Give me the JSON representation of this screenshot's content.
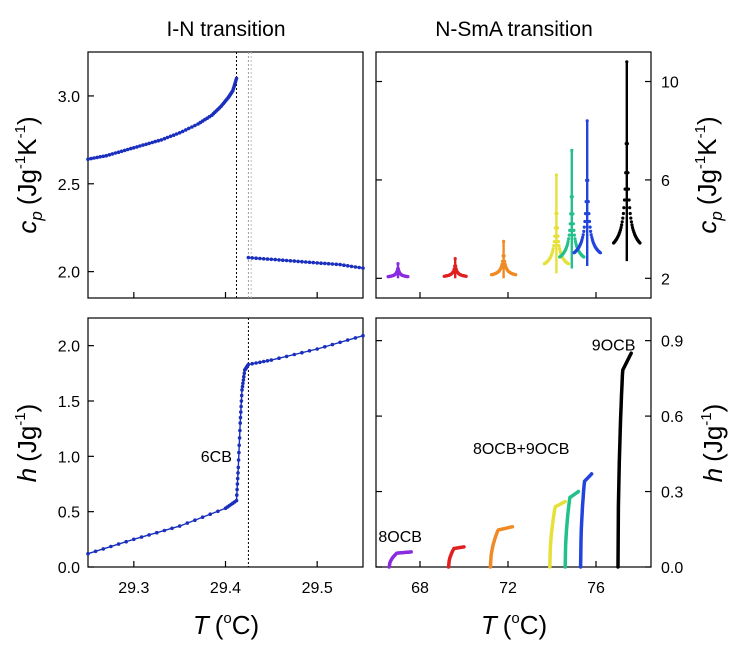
{
  "chart_data": [
    {
      "id": "in-cp",
      "type": "line",
      "title": "I-N transition",
      "ylabel_main": "c",
      "ylabel_sub": "p",
      "ylabel_units": "(Jg",
      "ylabel_sup1": "-1",
      "ylabel_mid": "K",
      "ylabel_sup2": "-1",
      "ylabel_close": ")",
      "xlim": [
        29.25,
        29.55
      ],
      "ylim": [
        1.85,
        3.25
      ],
      "yticks": [
        "2.0",
        "2.5",
        "3.0"
      ],
      "ytick_values": [
        2.0,
        2.5,
        3.0
      ],
      "xtick_values": [
        29.3,
        29.4,
        29.5
      ],
      "grid": false,
      "vlines": [
        {
          "x": 29.412,
          "color": "#000000"
        },
        {
          "x": 29.425,
          "color": "#999999"
        },
        {
          "x": 29.428,
          "color": "#bbbbbb"
        }
      ],
      "series": [
        {
          "color": "#1a2fbd",
          "points": [
            [
              29.25,
              2.64
            ],
            [
              29.27,
              2.66
            ],
            [
              29.29,
              2.69
            ],
            [
              29.31,
              2.72
            ],
            [
              29.33,
              2.75
            ],
            [
              29.35,
              2.79
            ],
            [
              29.37,
              2.84
            ],
            [
              29.385,
              2.89
            ],
            [
              29.395,
              2.94
            ],
            [
              29.403,
              2.99
            ],
            [
              29.408,
              3.03
            ],
            [
              29.412,
              3.1
            ]
          ]
        },
        {
          "color": "#1a2fbd",
          "points": [
            [
              29.425,
              2.08
            ],
            [
              29.45,
              2.07
            ],
            [
              29.475,
              2.06
            ],
            [
              29.5,
              2.05
            ],
            [
              29.525,
              2.04
            ],
            [
              29.55,
              2.02
            ]
          ]
        }
      ]
    },
    {
      "id": "nsma-cp",
      "type": "line",
      "title": "N-SmA transition",
      "ylabel_main": "c",
      "ylabel_sub": "p",
      "ylabel_units": "(Jg",
      "ylabel_sup1": "-1",
      "ylabel_mid": "K",
      "ylabel_sup2": "-1",
      "ylabel_close": ")",
      "xlim": [
        66,
        78.5
      ],
      "ylim": [
        1.2,
        11.2
      ],
      "yticks": [
        "2",
        "6",
        "10"
      ],
      "ytick_values": [
        2,
        6,
        10
      ],
      "xtick_values": [
        68,
        72,
        76
      ],
      "grid": false,
      "series": [
        {
          "color": "#8a2be2",
          "tc": 67.0,
          "peak": 2.6,
          "base": 2.0,
          "width": 0.9
        },
        {
          "color": "#e02020",
          "tc": 69.6,
          "peak": 2.8,
          "base": 2.0,
          "width": 1.0
        },
        {
          "color": "#f08a24",
          "tc": 71.8,
          "peak": 3.5,
          "base": 2.0,
          "width": 1.1
        },
        {
          "color": "#e6e03a",
          "tc": 74.2,
          "peak": 6.2,
          "base": 2.2,
          "width": 1.1
        },
        {
          "color": "#22c08a",
          "tc": 74.9,
          "peak": 7.2,
          "base": 2.4,
          "width": 1.1
        },
        {
          "color": "#2244dd",
          "tc": 75.6,
          "peak": 8.4,
          "base": 2.5,
          "width": 1.2
        },
        {
          "color": "#000000",
          "tc": 77.4,
          "peak": 10.8,
          "base": 2.7,
          "width": 1.2
        }
      ]
    },
    {
      "id": "in-h",
      "type": "line",
      "ylabel_main": "h",
      "ylabel_units": "(Jg",
      "ylabel_sup1": "-1",
      "ylabel_close": ")",
      "xlabel_main": "T",
      "xlabel_units": "(",
      "xlabel_sup": "o",
      "xlabel_close": "C)",
      "xlim": [
        29.25,
        29.55
      ],
      "ylim": [
        0.0,
        2.25
      ],
      "yticks": [
        "0.0",
        "0.5",
        "1.0",
        "1.5",
        "2.0"
      ],
      "ytick_values": [
        0.0,
        0.5,
        1.0,
        1.5,
        2.0
      ],
      "xticks": [
        "29.3",
        "29.4",
        "29.5"
      ],
      "xtick_values": [
        29.3,
        29.4,
        29.5
      ],
      "grid": false,
      "annotation": {
        "text": "6CB",
        "x": 29.39,
        "y": 0.95
      },
      "vlines": [
        {
          "x": 29.425,
          "color": "#000000"
        }
      ],
      "series": [
        {
          "color": "#1a2fbd",
          "points": [
            [
              29.25,
              0.12
            ],
            [
              29.3,
              0.25
            ],
            [
              29.35,
              0.37
            ],
            [
              29.4,
              0.53
            ],
            [
              29.412,
              0.6
            ],
            [
              29.414,
              0.9
            ],
            [
              29.416,
              1.3
            ],
            [
              29.418,
              1.6
            ],
            [
              29.421,
              1.78
            ],
            [
              29.425,
              1.83
            ],
            [
              29.45,
              1.87
            ],
            [
              29.5,
              1.97
            ],
            [
              29.55,
              2.09
            ]
          ]
        }
      ]
    },
    {
      "id": "nsma-h",
      "type": "line",
      "ylabel_main": "h",
      "ylabel_units": "(Jg",
      "ylabel_sup1": "-1",
      "ylabel_close": ")",
      "xlabel_main": "T",
      "xlabel_units": "(",
      "xlabel_sup": "o",
      "xlabel_close": "C)",
      "xlim": [
        66,
        78.5
      ],
      "ylim": [
        0.0,
        0.99
      ],
      "yticks": [
        "0.0",
        "0.3",
        "0.6",
        "0.9"
      ],
      "ytick_values": [
        0.0,
        0.3,
        0.6,
        0.9
      ],
      "xticks": [
        "68",
        "72",
        "76"
      ],
      "xtick_values": [
        68,
        72,
        76
      ],
      "grid": false,
      "annotations": [
        {
          "text": "8OCB",
          "x": 67.1,
          "y": 0.1
        },
        {
          "text": "8OCB+9OCB",
          "x": 72.6,
          "y": 0.45
        },
        {
          "text": "9OCB",
          "x": 76.8,
          "y": 0.86
        }
      ],
      "series": [
        {
          "color": "#8a2be2",
          "x0": 66.6,
          "x1": 67.6,
          "h": 0.06
        },
        {
          "color": "#e02020",
          "x0": 69.3,
          "x1": 70.0,
          "h": 0.08
        },
        {
          "color": "#f08a24",
          "x0": 71.2,
          "x1": 72.2,
          "h": 0.16
        },
        {
          "color": "#e6e03a",
          "x0": 73.9,
          "x1": 74.6,
          "h": 0.26
        },
        {
          "color": "#22c08a",
          "x0": 74.6,
          "x1": 75.2,
          "h": 0.3
        },
        {
          "color": "#2244dd",
          "x0": 75.3,
          "x1": 75.8,
          "h": 0.37
        },
        {
          "color": "#000000",
          "x0": 77.0,
          "x1": 77.6,
          "h": 0.85
        }
      ]
    }
  ]
}
